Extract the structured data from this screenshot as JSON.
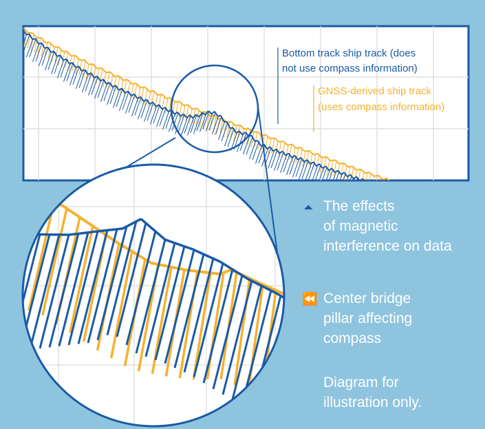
{
  "colors": {
    "background": "#8ec4de",
    "panel": "#ffffff",
    "grid": "#e0e0e0",
    "bottom_track": "#1a5aa6",
    "gnss_track": "#f5b12e",
    "side_text": "#ffffff"
  },
  "legend": {
    "bottom_track": [
      "Bottom track ship track (does",
      "not use compass information)"
    ],
    "gnss_track": [
      "GNSS-derived ship track",
      "(uses compass information)"
    ]
  },
  "notes": {
    "effects": {
      "icon": "double-up-arrow-icon",
      "arrow": "⏶",
      "lines": [
        "The effects",
        "of magnetic",
        "interference on data"
      ]
    },
    "pillar": {
      "icon": "double-left-arrow-icon",
      "arrow": "⏪",
      "lines": [
        "Center bridge",
        "pillar affecting",
        "compass"
      ]
    },
    "disclaimer": [
      "Diagram for",
      "illustration only."
    ]
  }
}
